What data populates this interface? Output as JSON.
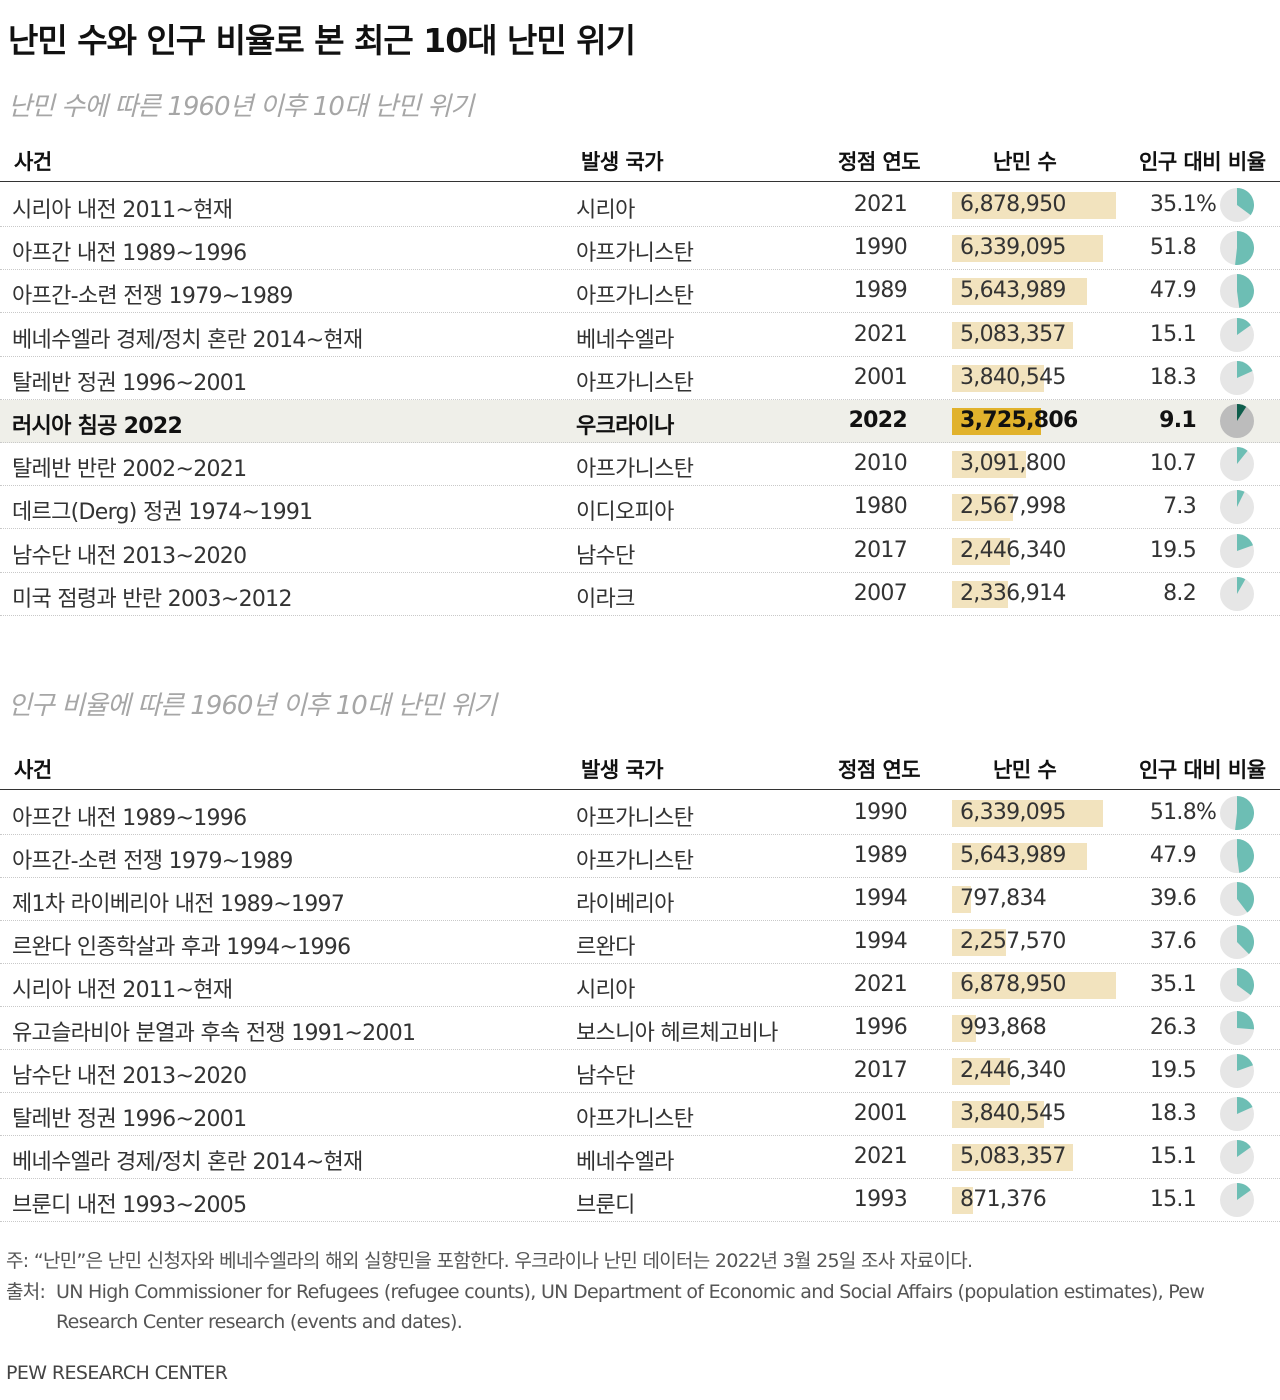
{
  "title": "난민 수와 인구 비율로 본 최근 10대 난민 위기",
  "columns": {
    "event": "사건",
    "country": "발생 국가",
    "year": "정점 연도",
    "refugees": "난민 수",
    "share": "인구 대비 비율"
  },
  "percent_symbol": "%",
  "colors": {
    "bar": "#f2e3be",
    "bar_highlight": "#e1b22c",
    "pie_base": "#e6e6e6",
    "pie_slice": "#6dbeb4",
    "pie_base_highlight": "#bcbcbc",
    "pie_slice_highlight": "#0f5e4c",
    "row_highlight": "#efefe9"
  },
  "chart_data": [
    {
      "type": "table",
      "title": "난민 수에 따른 1960년 이후 10대 난민 위기",
      "bar_max": 6878950,
      "rows": [
        {
          "event": "시리아 내전 2011~현재",
          "country": "시리아",
          "year": "2021",
          "refugees": 6878950,
          "refugees_label": "6,878,950",
          "share": 35.1,
          "share_label": "35.1",
          "highlight": false
        },
        {
          "event": "아프간 내전 1989~1996",
          "country": "아프가니스탄",
          "year": "1990",
          "refugees": 6339095,
          "refugees_label": "6,339,095",
          "share": 51.8,
          "share_label": "51.8",
          "highlight": false
        },
        {
          "event": "아프간-소련 전쟁 1979~1989",
          "country": "아프가니스탄",
          "year": "1989",
          "refugees": 5643989,
          "refugees_label": "5,643,989",
          "share": 47.9,
          "share_label": "47.9",
          "highlight": false
        },
        {
          "event": "베네수엘라 경제/정치 혼란 2014~현재",
          "country": "베네수엘라",
          "year": "2021",
          "refugees": 5083357,
          "refugees_label": "5,083,357",
          "share": 15.1,
          "share_label": "15.1",
          "highlight": false
        },
        {
          "event": "탈레반 정권 1996~2001",
          "country": "아프가니스탄",
          "year": "2001",
          "refugees": 3840545,
          "refugees_label": "3,840,545",
          "share": 18.3,
          "share_label": "18.3",
          "highlight": false
        },
        {
          "event": "러시아 침공 2022",
          "country": "우크라이나",
          "year": "2022",
          "refugees": 3725806,
          "refugees_label": "3,725,806",
          "share": 9.1,
          "share_label": "9.1",
          "highlight": true
        },
        {
          "event": "탈레반 반란 2002~2021",
          "country": "아프가니스탄",
          "year": "2010",
          "refugees": 3091800,
          "refugees_label": "3,091,800",
          "share": 10.7,
          "share_label": "10.7",
          "highlight": false
        },
        {
          "event": "데르그(Derg) 정권 1974~1991",
          "country": "이디오피아",
          "year": "1980",
          "refugees": 2567998,
          "refugees_label": "2,567,998",
          "share": 7.3,
          "share_label": "7.3",
          "highlight": false
        },
        {
          "event": "남수단 내전 2013~2020",
          "country": "남수단",
          "year": "2017",
          "refugees": 2446340,
          "refugees_label": "2,446,340",
          "share": 19.5,
          "share_label": "19.5",
          "highlight": false
        },
        {
          "event": "미국 점령과 반란 2003~2012",
          "country": "이라크",
          "year": "2007",
          "refugees": 2336914,
          "refugees_label": "2,336,914",
          "share": 8.2,
          "share_label": "8.2",
          "highlight": false
        }
      ]
    },
    {
      "type": "table",
      "title": "인구 비율에 따른 1960년 이후 10대 난민 위기",
      "bar_max": 6878950,
      "rows": [
        {
          "event": "아프간 내전 1989~1996",
          "country": "아프가니스탄",
          "year": "1990",
          "refugees": 6339095,
          "refugees_label": "6,339,095",
          "share": 51.8,
          "share_label": "51.8",
          "highlight": false
        },
        {
          "event": "아프간-소련 전쟁 1979~1989",
          "country": "아프가니스탄",
          "year": "1989",
          "refugees": 5643989,
          "refugees_label": "5,643,989",
          "share": 47.9,
          "share_label": "47.9",
          "highlight": false
        },
        {
          "event": "제1차 라이베리아 내전 1989~1997",
          "country": "라이베리아",
          "year": "1994",
          "refugees": 797834,
          "refugees_label": "797,834",
          "share": 39.6,
          "share_label": "39.6",
          "highlight": false
        },
        {
          "event": "르완다 인종학살과 후과 1994~1996",
          "country": "르완다",
          "year": "1994",
          "refugees": 2257570,
          "refugees_label": "2,257,570",
          "share": 37.6,
          "share_label": "37.6",
          "highlight": false
        },
        {
          "event": "시리아 내전 2011~현재",
          "country": "시리아",
          "year": "2021",
          "refugees": 6878950,
          "refugees_label": "6,878,950",
          "share": 35.1,
          "share_label": "35.1",
          "highlight": false
        },
        {
          "event": "유고슬라비아 분열과 후속 전쟁 1991~2001",
          "country": "보스니아 헤르체고비나",
          "year": "1996",
          "refugees": 993868,
          "refugees_label": "993,868",
          "share": 26.3,
          "share_label": "26.3",
          "highlight": false
        },
        {
          "event": "남수단 내전 2013~2020",
          "country": "남수단",
          "year": "2017",
          "refugees": 2446340,
          "refugees_label": "2,446,340",
          "share": 19.5,
          "share_label": "19.5",
          "highlight": false
        },
        {
          "event": "탈레반 정권 1996~2001",
          "country": "아프가니스탄",
          "year": "2001",
          "refugees": 3840545,
          "refugees_label": "3,840,545",
          "share": 18.3,
          "share_label": "18.3",
          "highlight": false
        },
        {
          "event": "베네수엘라 경제/정치 혼란 2014~현재",
          "country": "베네수엘라",
          "year": "2021",
          "refugees": 5083357,
          "refugees_label": "5,083,357",
          "share": 15.1,
          "share_label": "15.1",
          "highlight": false
        },
        {
          "event": "브룬디 내전 1993~2005",
          "country": "브룬디",
          "year": "1993",
          "refugees": 871376,
          "refugees_label": "871,376",
          "share": 15.1,
          "share_label": "15.1",
          "highlight": false
        }
      ]
    }
  ],
  "footnote": {
    "note": "주: “난민”은 난민 신청자와 베네수엘라의 해외 실향민을 포함한다. 우크라이나 난민 데이터는 2022년 3월 25일 조사 자료이다.",
    "source_label": "출처:",
    "source": "UN High Commissioner for Refugees (refugee counts), UN Department of Economic and Social Affairs (population estimates), Pew Research Center research (events and dates)."
  },
  "brand": "PEW RESEARCH CENTER"
}
